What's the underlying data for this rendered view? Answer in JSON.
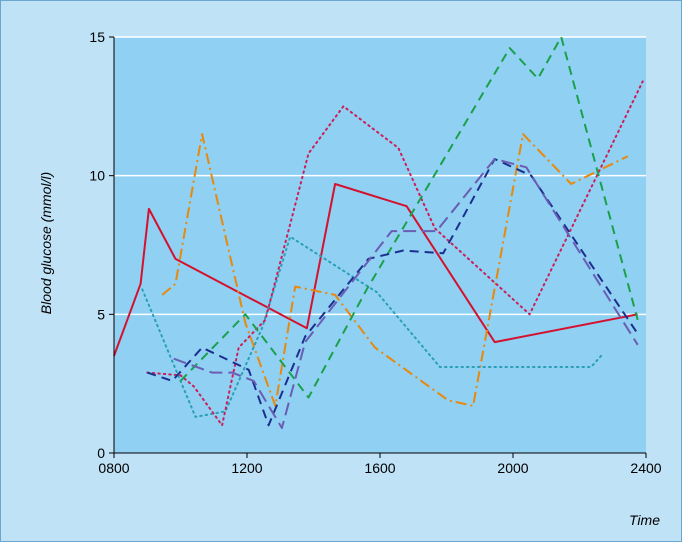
{
  "chart_data": {
    "type": "line",
    "title": "",
    "xlabel": "Time",
    "ylabel": "Blood glucose (mmol/l)",
    "xlim": [
      800,
      2400
    ],
    "ylim": [
      0,
      15
    ],
    "x_ticks": [
      {
        "value": 800,
        "label": "0800"
      },
      {
        "value": 1200,
        "label": "1200"
      },
      {
        "value": 1600,
        "label": "1600"
      },
      {
        "value": 2000,
        "label": "2000"
      },
      {
        "value": 2400,
        "label": "2400"
      }
    ],
    "y_ticks": [
      {
        "value": 0,
        "label": "0"
      },
      {
        "value": 5,
        "label": "5"
      },
      {
        "value": 10,
        "label": "10"
      },
      {
        "value": 15,
        "label": "15"
      }
    ],
    "grid": "horizontal white lines at y = 5, 10, 15",
    "legend": "none",
    "colors": {
      "frame_bg": "#bfe2f6",
      "plot_bg": "#8fd0f3",
      "grid": "#ffffff"
    },
    "series": [
      {
        "color": "#d4112e",
        "style": "solid",
        "x": [
          800,
          880,
          905,
          985,
          1380,
          1465,
          1680,
          1945,
          2375
        ],
        "y": [
          3.5,
          6.1,
          8.8,
          7.0,
          4.5,
          9.7,
          8.9,
          4.0,
          5.0
        ]
      },
      {
        "color": "#e8890c",
        "style": "dash-dot",
        "x": [
          945,
          985,
          1065,
          1195,
          1285,
          1345,
          1465,
          1585,
          1805,
          1880,
          2030,
          2175,
          2345
        ],
        "y": [
          5.7,
          6.1,
          11.5,
          4.7,
          1.7,
          6.0,
          5.7,
          3.8,
          1.9,
          1.7,
          11.5,
          9.7,
          10.7
        ]
      },
      {
        "color": "#2a9fb5",
        "style": "dotted",
        "x": [
          885,
          1045,
          1135,
          1245,
          1330,
          1590,
          1780,
          2235,
          2265
        ],
        "y": [
          5.9,
          1.3,
          1.5,
          4.5,
          7.8,
          5.8,
          3.1,
          3.1,
          3.5
        ]
      },
      {
        "color": "#cc1f5a",
        "style": "dotted",
        "x": [
          900,
          1000,
          1040,
          1125,
          1175,
          1255,
          1385,
          1490,
          1655,
          1765,
          2050,
          2390
        ],
        "y": [
          2.9,
          2.8,
          2.4,
          1.0,
          3.8,
          4.8,
          10.8,
          12.5,
          11.0,
          8.1,
          5.0,
          13.4
        ]
      },
      {
        "color": "#1aa04a",
        "style": "dashed",
        "x": [
          1000,
          1195,
          1385,
          1560,
          1990,
          2075,
          2145,
          2375
        ],
        "y": [
          2.6,
          5.0,
          2.0,
          5.9,
          14.6,
          13.5,
          15.0,
          4.8
        ]
      },
      {
        "color": "#1c2f8f",
        "style": "dashed",
        "x": [
          900,
          975,
          1065,
          1205,
          1265,
          1375,
          1565,
          1670,
          1790,
          1945,
          2055,
          2375
        ],
        "y": [
          2.9,
          2.6,
          3.8,
          3.0,
          1.0,
          4.2,
          7.0,
          7.3,
          7.2,
          10.6,
          10.0,
          4.3
        ]
      },
      {
        "color": "#6a5db3",
        "style": "long-dash",
        "x": [
          980,
          1095,
          1155,
          1220,
          1305,
          1375,
          1635,
          1770,
          1945,
          2040,
          2375
        ],
        "y": [
          3.4,
          2.9,
          2.9,
          2.6,
          0.9,
          4.0,
          8.0,
          8.0,
          10.6,
          10.3,
          3.9
        ]
      }
    ]
  }
}
